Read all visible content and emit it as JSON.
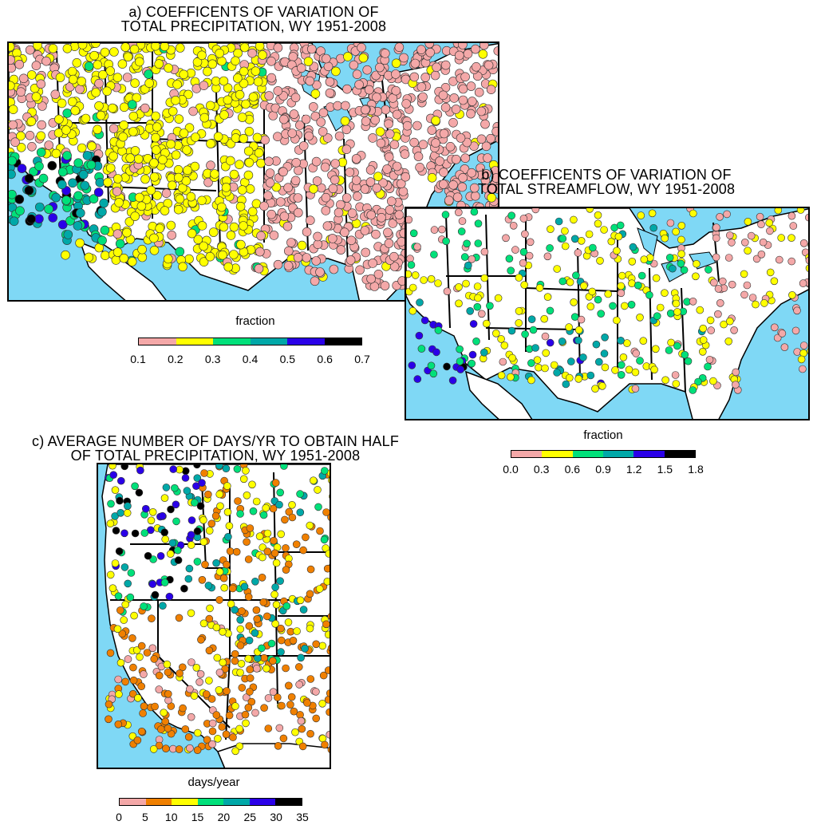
{
  "panel_a": {
    "title_line1": "a) COEFFICENTS OF VARIATION OF",
    "title_line2": "TOTAL PRECIPITATION, WY 1951-2008",
    "legend_label": "fraction",
    "colors": [
      "#f4a8a8",
      "#ffff00",
      "#00e07a",
      "#00a8a8",
      "#2a00e8",
      "#000000"
    ],
    "ticks": [
      "0.1",
      "0.2",
      "0.3",
      "0.4",
      "0.5",
      "0.6",
      "0.7"
    ]
  },
  "panel_b": {
    "title_line1": "b) COEFFICENTS OF VARIATION OF",
    "title_line2": "TOTAL STREAMFLOW, WY 1951-2008",
    "legend_label": "fraction",
    "colors": [
      "#f4a8a8",
      "#ffff00",
      "#00e07a",
      "#00a8a8",
      "#2a00e8",
      "#000000"
    ],
    "ticks": [
      "0.0",
      "0.3",
      "0.6",
      "0.9",
      "1.2",
      "1.5",
      "1.8"
    ]
  },
  "panel_c": {
    "title_line1": "c) AVERAGE NUMBER OF DAYS/YR TO OBTAIN HALF",
    "title_line2": "OF TOTAL PRECIPITATION, WY 1951-2008",
    "legend_label": "days/year",
    "colors": [
      "#f4a8a8",
      "#f08000",
      "#ffff00",
      "#00e07a",
      "#00a8a8",
      "#2a00e8",
      "#000000"
    ],
    "ticks": [
      "0",
      "5",
      "10",
      "15",
      "20",
      "25",
      "30",
      "35"
    ]
  },
  "colors": {
    "ocean": "#7fd8f5",
    "land": "#ffffff",
    "border": "#000000"
  }
}
